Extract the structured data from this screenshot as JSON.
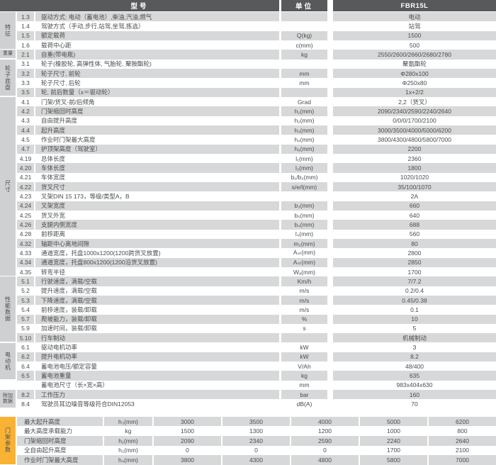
{
  "header": {
    "model_col": "型号",
    "unit_col": "单位",
    "product_col": "FBR15L"
  },
  "colors": {
    "header_bg": "#58595b",
    "row_gray": "#d7d8d9",
    "strip_gray": "#cfd0d2",
    "mast_strip_orange": "#f9b233",
    "text": "#4b4c4e"
  },
  "main": {
    "categories": [
      {
        "label": "特征",
        "start": 0,
        "count": 4,
        "mode": "vert"
      },
      {
        "label": "重量",
        "start": 4,
        "count": 1,
        "mode": "lines"
      },
      {
        "label": "轮子底盘",
        "start": 5,
        "count": 4,
        "mode": "vert"
      },
      {
        "label": "尺寸",
        "start": 9,
        "count": 19,
        "mode": "vert"
      },
      {
        "label": "性能数据",
        "start": 28,
        "count": 7,
        "mode": "vert"
      },
      {
        "label": "电动机",
        "start": 35,
        "count": 4,
        "mode": "vert"
      },
      {
        "label": "附加\n数据",
        "start": 40,
        "count": 2,
        "mode": "lines"
      }
    ],
    "rows": [
      {
        "no": "1.3",
        "desc": "驱动方式: 电动（蓄电池）,柴油,汽油,燃气",
        "unit": "",
        "val": "电动"
      },
      {
        "no": "1.4",
        "desc": "驾驶方式（手动,步行,站驾,坐驾,拣选）",
        "unit": "",
        "val": "站驾"
      },
      {
        "no": "1.5",
        "desc": "额定载荷",
        "unit": "Q(kg)",
        "val": "1500"
      },
      {
        "no": "1.6",
        "desc": "载荷中心距",
        "unit": "c(mm)",
        "val": "500"
      },
      {
        "no": "2.1",
        "desc": "自重(带电瓶)",
        "unit": "kg",
        "val": "2550/2600/2660/2680/2780"
      },
      {
        "no": "3.1",
        "desc": "轮子(橡胶轮, 高弹性体, 气胎轮, 聚胺酯轮)",
        "unit": "",
        "val": "聚氨酯轮"
      },
      {
        "no": "3.2",
        "desc": "轮子尺寸, 前轮",
        "unit": "mm",
        "val": "Φ280x100"
      },
      {
        "no": "3.3",
        "desc": "轮子尺寸, 后轮",
        "unit": "mm",
        "val": "Φ250x80"
      },
      {
        "no": "3.5",
        "desc": "轮, 前后数量（x＝驱动轮）",
        "unit": "",
        "val": "1x+2/2"
      },
      {
        "no": "4.1",
        "desc": "门架/货叉-前/后倾角",
        "unit": "Grad",
        "val": "2,2（货叉）"
      },
      {
        "no": "4.2",
        "desc": "门架缩回时高度",
        "unit": "h₁(mm)",
        "val": "2090/2340/2590/2240/2640"
      },
      {
        "no": "4.3",
        "desc": "自由提升高度",
        "unit": "h₂(mm)",
        "val": "0/0/0/1700/2100"
      },
      {
        "no": "4.4",
        "desc": "起升高度",
        "unit": "h₃(mm)",
        "val": "3000/3500/4000/5000/6200"
      },
      {
        "no": "4.5",
        "desc": "作业时门架最大高度",
        "unit": "h₄(mm)",
        "val": "3800/4300/4800/5800/7000"
      },
      {
        "no": "4.7",
        "desc": "护顶架高度（驾驶室）",
        "unit": "h₆(mm)",
        "val": "2200"
      },
      {
        "no": "4.19",
        "desc": "总体长度",
        "unit": "l₁(mm)",
        "val": "2360"
      },
      {
        "no": "4.20",
        "desc": "车体长度",
        "unit": "l₂(mm)",
        "val": "1800"
      },
      {
        "no": "4.21",
        "desc": "车体宽度",
        "unit": "b₁/b₂(mm)",
        "val": "1020/1020"
      },
      {
        "no": "4.22",
        "desc": "货叉尺寸",
        "unit": "s/e/l(mm)",
        "val": "35/100/1070"
      },
      {
        "no": "4.23",
        "desc": "叉架DIN 15 173，等级/类型A，B",
        "unit": "",
        "val": "2A"
      },
      {
        "no": "4.24",
        "desc": "叉架宽度",
        "unit": "b₃(mm)",
        "val": "660"
      },
      {
        "no": "4.25",
        "desc": "货叉外宽",
        "unit": "b₅(mm)",
        "val": "640"
      },
      {
        "no": "4.26",
        "desc": "支腿内侧宽度",
        "unit": "b₄(mm)",
        "val": "688"
      },
      {
        "no": "4.28",
        "desc": "前移距离",
        "unit": "l₄(mm)",
        "val": "560"
      },
      {
        "no": "4.32",
        "desc": "轴距中心离地间隙",
        "unit": "m₂(mm)",
        "val": "80"
      },
      {
        "no": "4.33",
        "desc": "通道宽度，托盘1000x1200(1200跨货叉放置)",
        "unit": "Aₛₜ(mm)",
        "val": "2800"
      },
      {
        "no": "4.34",
        "desc": "通道宽度，托盘800x1200(1200沿货叉放置)",
        "unit": "Aₛₜ(mm)",
        "val": "2850"
      },
      {
        "no": "4.35",
        "desc": "转弯半径",
        "unit": "Wₐ(mm)",
        "val": "1700"
      },
      {
        "no": "5.1",
        "desc": "行驶速度，满载/空载",
        "unit": "Km/h",
        "val": "7/7.2"
      },
      {
        "no": "5.2",
        "desc": "提升速度，满载/空载",
        "unit": "m/s",
        "val": "0.2/0.4"
      },
      {
        "no": "5.3",
        "desc": "下降速度，满载/空载",
        "unit": "m/s",
        "val": "0.45/0.38"
      },
      {
        "no": "5.4",
        "desc": "前移速度，装载/卸载",
        "unit": "m/s",
        "val": "0.1"
      },
      {
        "no": "5.7",
        "desc": "爬坡能力，装载/卸载",
        "unit": "%",
        "val": "10"
      },
      {
        "no": "5.9",
        "desc": "加速时间，装载/卸载",
        "unit": "s",
        "val": "5"
      },
      {
        "no": "5.10",
        "desc": "行车制动",
        "unit": "",
        "val": "机械制动"
      },
      {
        "no": "6.1",
        "desc": "驱动电机功率",
        "unit": "kW",
        "val": "3"
      },
      {
        "no": "6.2",
        "desc": "提升电机功率",
        "unit": "kW",
        "val": "8.2"
      },
      {
        "no": "6.4",
        "desc": "蓄电池电压/额定容量",
        "unit": "V/Ah",
        "val": "48/400"
      },
      {
        "no": "6.5",
        "desc": "蓄电池重量",
        "unit": "kg",
        "val": "635"
      },
      {
        "no": "",
        "desc": "蓄电池尺寸（长×宽×高）",
        "unit": "mm",
        "val": "983x404x630"
      },
      {
        "no": "8.2",
        "desc": "工作压力",
        "unit": "bar",
        "val": "160"
      },
      {
        "no": "8.4",
        "desc": "驾驶员耳边噪音等级符合DIN12053",
        "unit": "dB(A)",
        "val": "70"
      }
    ]
  },
  "mast": {
    "category": "门架参数",
    "rows": [
      {
        "label": "最大起升高度",
        "unit": "h₃(mm)",
        "values": [
          "3000",
          "3500",
          "4000",
          "5000",
          "6200"
        ]
      },
      {
        "label": "最大高度承载能力",
        "unit": "kg",
        "values": [
          "1500",
          "1300",
          "1200",
          "1000",
          "800"
        ]
      },
      {
        "label": "门架缩回时高度",
        "unit": "h₁(mm)",
        "values": [
          "2090",
          "2340",
          "2590",
          "2240",
          "2640"
        ]
      },
      {
        "label": "全自由起升高度",
        "unit": "h₂(mm)",
        "values": [
          "0",
          "0",
          "0",
          "1700",
          "2100"
        ]
      },
      {
        "label": "作业时门架最大高度",
        "unit": "h₄(mm)",
        "values": [
          "3800",
          "4300",
          "4800",
          "5800",
          "7000"
        ]
      }
    ]
  }
}
